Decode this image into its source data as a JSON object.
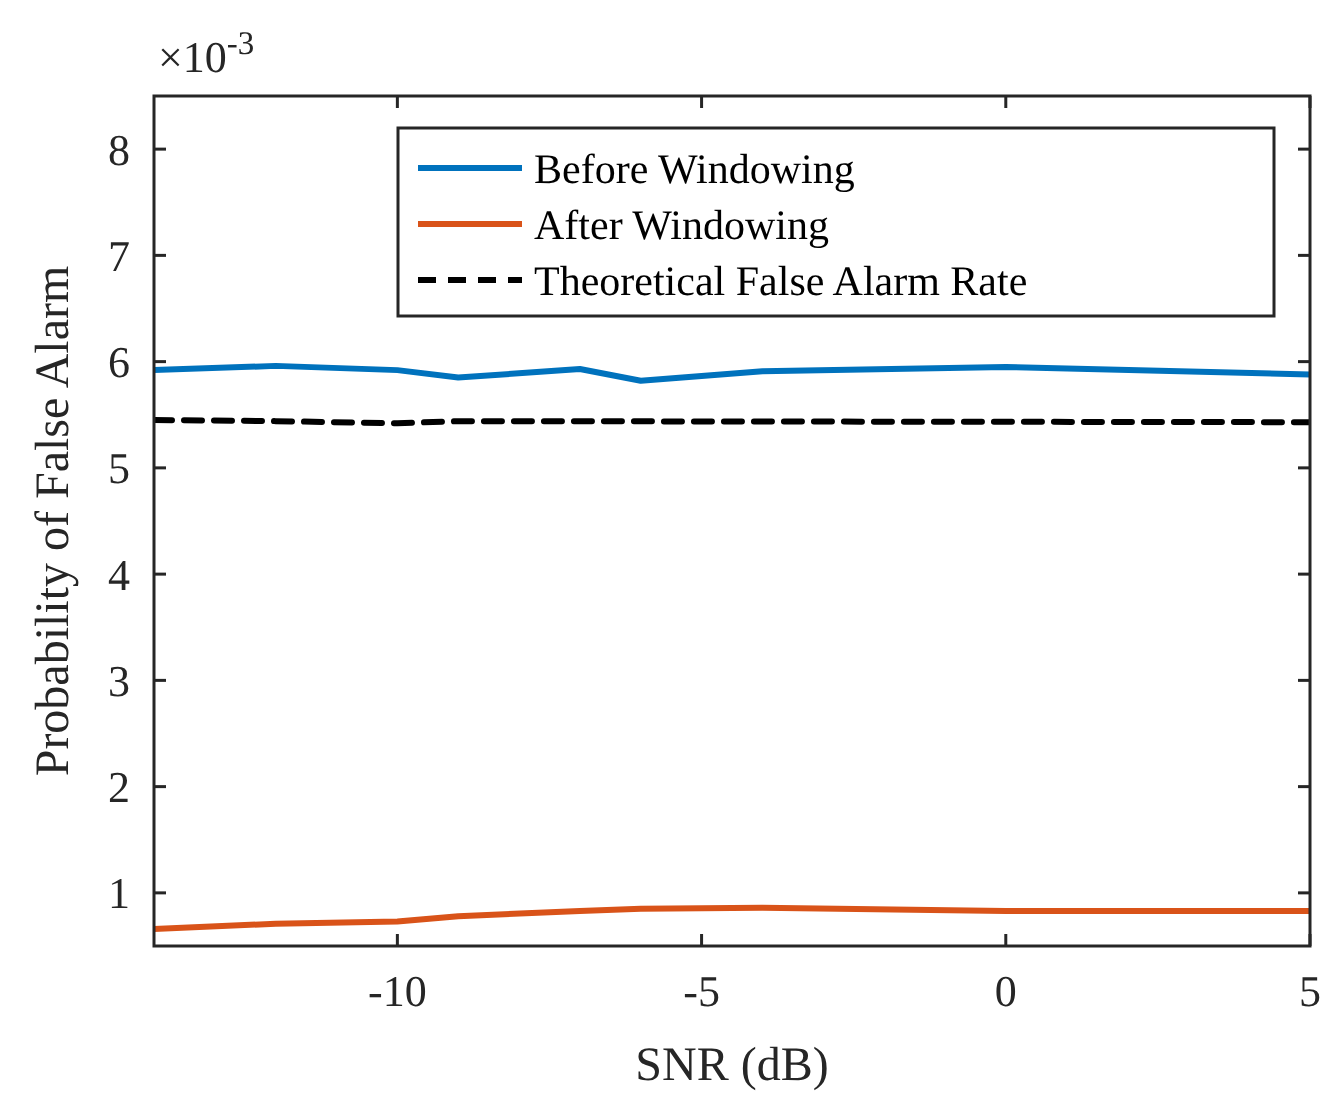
{
  "chart_data": {
    "type": "line",
    "xlabel": "SNR (dB)",
    "ylabel": "Probability of False Alarm",
    "annotations": [
      "×10$^{-3}$"
    ],
    "xlim": [
      -14,
      5
    ],
    "xticks": [
      -10,
      -5,
      0,
      5
    ],
    "ylim": [
      0.5,
      8.5
    ],
    "yticks": [
      1,
      2,
      3,
      4,
      5,
      6,
      7,
      8
    ],
    "grid": false,
    "legend": "top right",
    "marker": "none",
    "series": [
      {
        "name": "Before Windowing",
        "color": "#0072bd",
        "x": [
          -14,
          -12,
          -10,
          -9,
          -7,
          -6,
          -4,
          0,
          5
        ],
        "values": [
          5.92,
          5.96,
          5.92,
          5.85,
          5.93,
          5.82,
          5.91,
          5.95,
          5.88
        ],
        "line_style": "solid"
      },
      {
        "name": "After Windowing",
        "color": "#d95319",
        "x": [
          -14,
          -12,
          -10,
          -9,
          -7,
          -6,
          -4,
          0,
          5
        ],
        "values": [
          0.66,
          0.71,
          0.73,
          0.78,
          0.83,
          0.85,
          0.86,
          0.83,
          0.83
        ],
        "line_style": "solid"
      },
      {
        "name": "Theoretical False Alarm Rate",
        "color": "#000000",
        "x": [
          -14,
          -12,
          -10,
          -9,
          5
        ],
        "values": [
          5.45,
          5.44,
          5.42,
          5.44,
          5.43
        ],
        "line_style": "dashed"
      }
    ]
  }
}
